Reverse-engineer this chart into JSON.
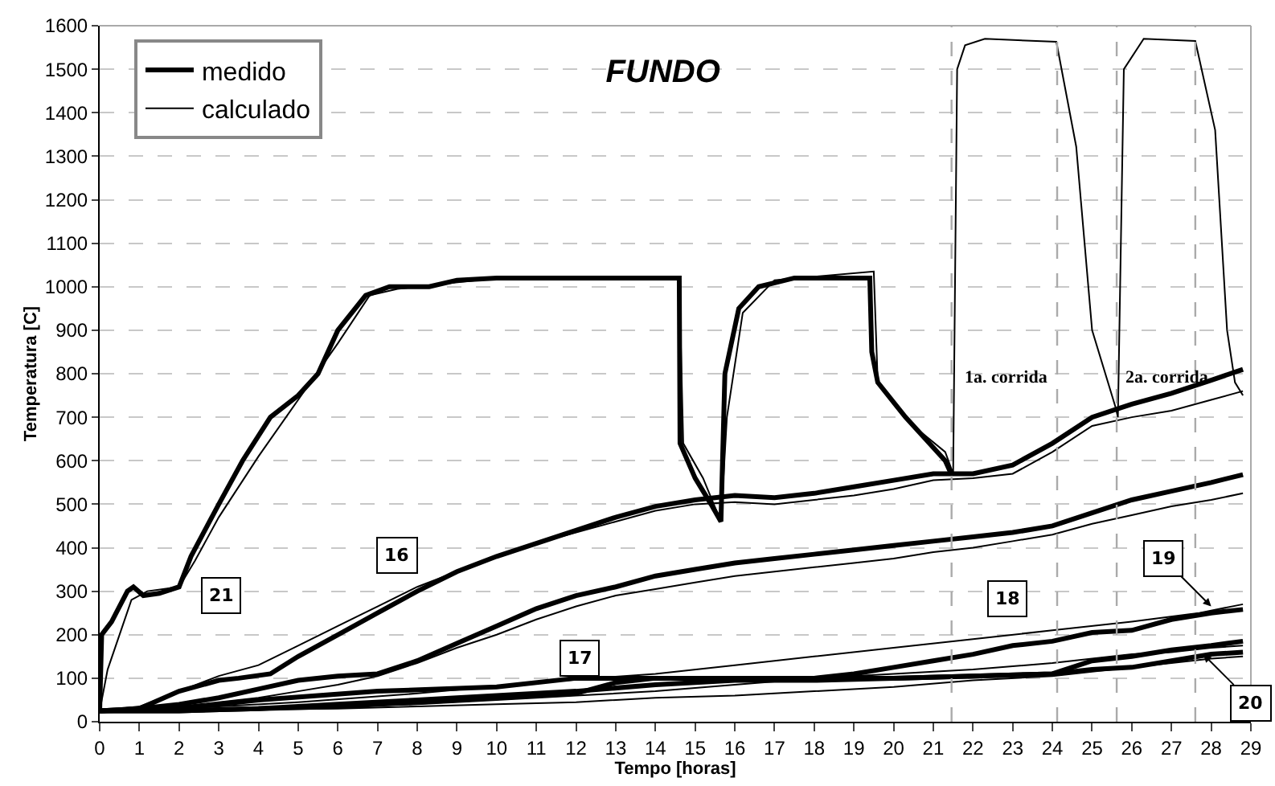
{
  "chart_data": {
    "type": "line",
    "title": "FUNDO",
    "xlabel": "Tempo [horas]",
    "ylabel": "Temperatura [C]",
    "xlim": [
      0,
      29
    ],
    "xticks": [
      0,
      1,
      2,
      3,
      4,
      5,
      6,
      7,
      8,
      9,
      10,
      11,
      12,
      13,
      14,
      15,
      16,
      17,
      18,
      19,
      20,
      21,
      22,
      23,
      24,
      25,
      26,
      27,
      28,
      29
    ],
    "ylim": [
      0,
      1600
    ],
    "yticks": [
      0,
      100,
      200,
      300,
      400,
      500,
      600,
      700,
      800,
      900,
      1000,
      1100,
      1200,
      1300,
      1400,
      1500,
      1600
    ],
    "grid": "y",
    "legend": "top left",
    "line_style": "solid",
    "marker": "none",
    "series": [
      {
        "name": "medido",
        "color": "#000000",
        "x": [
          0,
          0.05,
          0.3,
          0.7,
          0.85,
          1.1,
          1.5,
          2,
          2.3,
          3,
          3.6,
          4.3,
          5,
          5.5,
          6,
          6.7,
          7.3,
          8.3,
          9,
          10,
          12,
          14.6,
          14.62,
          15,
          15.4,
          15.65,
          15.75,
          16.1,
          16.6,
          17.5,
          19.4,
          19.45,
          19.6,
          20.3,
          20.9,
          21.3,
          21.45
        ],
        "values": [
          25,
          200,
          230,
          300,
          310,
          290,
          295,
          310,
          380,
          500,
          600,
          700,
          750,
          800,
          900,
          980,
          1000,
          1000,
          1015,
          1020,
          1020,
          1020,
          640,
          560,
          500,
          460,
          800,
          950,
          1000,
          1020,
          1020,
          850,
          780,
          700,
          640,
          600,
          570
        ]
      },
      {
        "name": "calculado",
        "color": "#000000",
        "x": [
          0,
          0.2,
          0.8,
          1.2,
          2,
          2.4,
          3,
          4,
          5,
          6,
          6.8,
          7.5,
          8.5,
          10,
          14.6,
          14.7,
          15.2,
          15.65,
          15.8,
          16.2,
          17,
          19.5,
          19.6,
          20.5,
          21.3,
          21.5,
          21.6,
          21.8,
          22.3,
          24.1,
          24.6,
          25,
          25.6,
          25.65,
          25.8,
          26.3,
          27.6,
          28.1,
          28.4,
          28.6,
          28.8
        ],
        "values": [
          25,
          120,
          280,
          300,
          310,
          370,
          470,
          610,
          740,
          870,
          980,
          995,
          1005,
          1020,
          1020,
          640,
          560,
          460,
          700,
          940,
          1015,
          1035,
          780,
          680,
          620,
          570,
          1500,
          1555,
          1570,
          1563,
          1322,
          900,
          720,
          700,
          1500,
          1570,
          1565,
          1360,
          900,
          780,
          750
        ]
      },
      {
        "color": "#000000",
        "x": [
          0,
          1,
          2,
          3,
          3.5,
          4.3,
          5,
          6,
          7,
          8,
          9,
          10,
          11,
          12,
          13,
          14,
          15,
          16,
          17,
          18,
          19,
          20,
          21,
          22,
          23,
          24,
          25,
          26,
          27,
          28,
          28.8
        ],
        "values": [
          25,
          30,
          70,
          95,
          100,
          110,
          150,
          200,
          250,
          300,
          345,
          380,
          410,
          440,
          470,
          495,
          510,
          520,
          515,
          525,
          540,
          555,
          570,
          570,
          590,
          640,
          700,
          730,
          755,
          785,
          810
        ]
      },
      {
        "color": "#000000",
        "x": [
          0,
          1,
          2,
          3,
          4,
          5,
          6,
          7,
          8,
          9,
          10,
          11,
          12,
          13,
          14,
          15,
          16,
          17,
          18,
          19,
          20,
          21,
          22,
          23,
          24,
          25,
          26,
          27,
          28,
          28.8
        ],
        "values": [
          25,
          35,
          70,
          105,
          130,
          175,
          220,
          265,
          310,
          345,
          380,
          410,
          435,
          460,
          485,
          500,
          505,
          500,
          510,
          520,
          535,
          555,
          560,
          570,
          620,
          680,
          700,
          715,
          740,
          760
        ]
      },
      {
        "color": "#000000",
        "x": [
          0,
          1,
          2,
          3,
          4,
          5,
          6,
          7,
          8,
          9,
          10,
          11,
          12,
          13,
          14,
          15,
          16,
          17,
          18,
          19,
          20,
          21,
          22,
          23,
          24,
          25,
          26,
          27,
          28,
          28.8
        ],
        "values": [
          25,
          30,
          40,
          55,
          75,
          95,
          105,
          110,
          140,
          180,
          220,
          260,
          290,
          310,
          335,
          350,
          365,
          375,
          385,
          395,
          405,
          415,
          425,
          435,
          450,
          480,
          510,
          530,
          550,
          568
        ]
      },
      {
        "color": "#000000",
        "x": [
          0,
          1,
          2,
          3,
          4,
          5,
          6,
          7,
          8,
          9,
          10,
          11,
          12,
          13,
          14,
          15,
          16,
          17,
          18,
          19,
          20,
          21,
          22,
          23,
          24,
          25,
          26,
          27,
          28,
          28.8
        ],
        "values": [
          25,
          28,
          35,
          45,
          55,
          70,
          85,
          105,
          135,
          170,
          200,
          235,
          265,
          290,
          305,
          320,
          335,
          345,
          355,
          365,
          375,
          390,
          400,
          415,
          430,
          455,
          475,
          495,
          510,
          525
        ]
      },
      {
        "color": "#000000",
        "x": [
          0,
          2,
          4,
          7,
          10,
          12,
          16,
          18,
          19,
          20,
          21,
          22,
          23,
          24,
          25,
          26,
          27,
          28,
          28.8
        ],
        "values": [
          25,
          30,
          50,
          70,
          80,
          100,
          100,
          100,
          110,
          125,
          140,
          155,
          175,
          185,
          205,
          210,
          235,
          250,
          258
        ]
      },
      {
        "color": "#000000",
        "x": [
          0,
          2,
          5,
          8,
          11,
          14,
          16,
          18,
          20,
          22,
          24,
          26,
          27.7,
          28.8
        ],
        "values": [
          25,
          30,
          45,
          65,
          90,
          110,
          130,
          150,
          170,
          190,
          210,
          230,
          250,
          270
        ]
      },
      {
        "color": "#000000",
        "x": [
          0,
          2,
          4,
          6,
          8,
          10,
          12,
          14,
          16,
          18,
          20,
          22,
          24,
          25,
          26,
          27,
          28,
          28.8
        ],
        "values": [
          25,
          25,
          30,
          40,
          50,
          60,
          70,
          85,
          95,
          95,
          100,
          105,
          110,
          140,
          150,
          165,
          175,
          185
        ]
      },
      {
        "color": "#000000",
        "x": [
          0,
          2,
          4,
          6,
          8,
          10,
          12,
          14,
          16,
          18,
          20,
          22,
          24,
          25,
          26,
          27,
          28,
          28.8
        ],
        "values": [
          25,
          27,
          30,
          35,
          40,
          50,
          60,
          70,
          85,
          100,
          110,
          120,
          135,
          145,
          155,
          160,
          170,
          175
        ]
      },
      {
        "color": "#000000",
        "x": [
          0,
          2,
          4,
          6,
          8,
          10,
          12,
          13,
          14,
          18,
          20,
          22,
          24,
          25,
          26,
          27,
          28,
          28.8
        ],
        "values": [
          25,
          25,
          30,
          35,
          45,
          55,
          65,
          90,
          100,
          100,
          100,
          105,
          110,
          120,
          125,
          140,
          155,
          160
        ]
      },
      {
        "color": "#000000",
        "x": [
          0,
          2,
          4,
          6,
          8,
          10,
          12,
          14,
          16,
          18,
          20,
          22,
          24,
          25,
          26,
          27,
          28,
          28.8
        ],
        "values": [
          25,
          25,
          28,
          30,
          35,
          40,
          45,
          55,
          60,
          70,
          80,
          95,
          105,
          115,
          125,
          135,
          145,
          150
        ]
      }
    ],
    "ref_lines": [
      {
        "axis": "x",
        "value": 21.46,
        "color": "#aaaaaa",
        "line_style": "dashed"
      },
      {
        "axis": "x",
        "value": 24.12,
        "color": "#aaaaaa",
        "line_style": "dashed"
      },
      {
        "axis": "x",
        "value": 25.62,
        "color": "#aaaaaa",
        "line_style": "dashed"
      },
      {
        "axis": "x",
        "value": 27.6,
        "color": "#aaaaaa",
        "line_style": "dashed"
      }
    ],
    "annotations": [
      {
        "text": "21",
        "x": 2.1,
        "y": 340
      },
      {
        "text": "16",
        "x": 8.4,
        "y": 295
      },
      {
        "text": "17",
        "x": 12.1,
        "y": 280
      },
      {
        "text": "18",
        "x": 22.85,
        "y": 195
      },
      {
        "text": "19",
        "x": 28,
        "y": 265
      },
      {
        "text": "20",
        "x": 27.8,
        "y": 155
      },
      "1a. corrida",
      "2a. corrida"
    ]
  }
}
